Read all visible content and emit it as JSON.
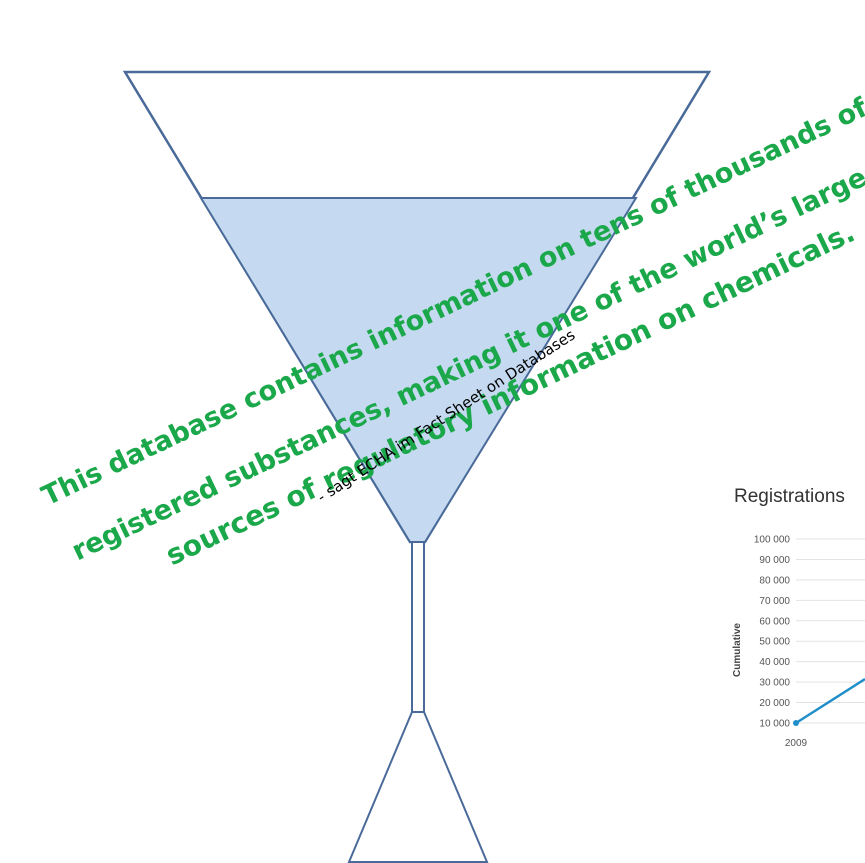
{
  "quote": {
    "line1": "This database contains information on tens of thousands of",
    "line2": "registered substances, making it one of the world’s largest",
    "line3": "sources of regulatory information on chemicals.",
    "attribution": "- sagt ECHA im Fact Sheet on Databases",
    "color": "#1aa84a"
  },
  "funnel": {
    "fill_color": "#c5d9f0",
    "stroke_color": "#4a6b99"
  },
  "chart": {
    "title": "Registrations",
    "ylabel": "Cumulative",
    "yticks": [
      "100 000",
      "90 000",
      "80 000",
      "70 000",
      "60 000",
      "50 000",
      "40 000",
      "30 000",
      "20 000",
      "10 000"
    ],
    "xtick": "2009",
    "line_color": "#1f8ec9"
  },
  "chart_data": {
    "type": "line",
    "title": "Registrations",
    "ylabel": "Cumulative",
    "ylim": [
      10000,
      100000
    ],
    "x": [
      "2009"
    ],
    "series": [
      {
        "values": [
          10000
        ]
      }
    ],
    "grid": true
  }
}
